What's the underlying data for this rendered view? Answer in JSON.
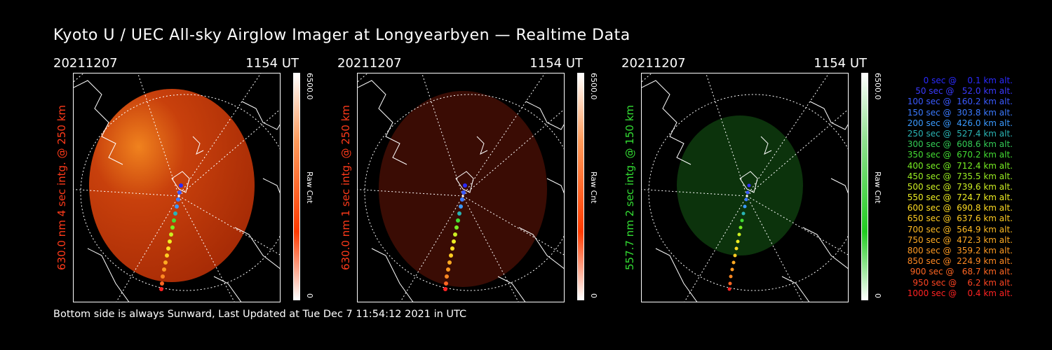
{
  "title": "Kyoto U / UEC All-sky Airglow Imager at Longyearbyen — Realtime Data",
  "footer": "Bottom side is always Sunward, Last Updated at Tue Dec  7 11:54:12 2021 in UTC",
  "panels": [
    {
      "date": "20211207",
      "time": "1154 UT",
      "ylabel": "630.0 nm 4 sec intg. @ 250 km",
      "label_color": "#ff3a1a",
      "cbar_max": "6500.0",
      "cbar_unit": "Raw Cnt",
      "cbar_min": "0",
      "cbar_color": "#ff3a00",
      "brightness": "high"
    },
    {
      "date": "20211207",
      "time": "1154 UT",
      "ylabel": "630.0 nm 1 sec intg. @ 250 km",
      "label_color": "#ff3a1a",
      "cbar_max": "6500.0",
      "cbar_unit": "Raw Cnt",
      "cbar_min": "0",
      "cbar_color": "#ff3a00",
      "brightness": "low"
    },
    {
      "date": "20211207",
      "time": "1154 UT",
      "ylabel": "557.7 nm 2 sec intg. @ 150 km",
      "label_color": "#33dd33",
      "cbar_max": "6500.0",
      "cbar_unit": "Raw Cnt",
      "cbar_min": "0",
      "cbar_color": "#22cc22",
      "brightness": "low"
    }
  ],
  "legend": [
    {
      "text": "   0 sec @    0.1 km alt.",
      "color": "#2a2aff"
    },
    {
      "text": "  50 sec @   52.0 km alt.",
      "color": "#3a3aff"
    },
    {
      "text": " 100 sec @  160.2 km alt.",
      "color": "#3a5aff"
    },
    {
      "text": " 150 sec @  303.8 km alt.",
      "color": "#3a7aff"
    },
    {
      "text": " 200 sec @  426.0 km alt.",
      "color": "#3a9aff"
    },
    {
      "text": " 250 sec @  527.4 km alt.",
      "color": "#2ab4b4"
    },
    {
      "text": " 300 sec @  608.6 km alt.",
      "color": "#33cc55"
    },
    {
      "text": " 350 sec @  670.2 km alt.",
      "color": "#44dd33"
    },
    {
      "text": " 400 sec @  712.4 km alt.",
      "color": "#77ee22"
    },
    {
      "text": " 450 sec @  735.5 km alt.",
      "color": "#99ee22"
    },
    {
      "text": " 500 sec @  739.6 km alt.",
      "color": "#ccee22"
    },
    {
      "text": " 550 sec @  724.7 km alt.",
      "color": "#eeee22"
    },
    {
      "text": " 600 sec @  690.8 km alt.",
      "color": "#ffdd22"
    },
    {
      "text": " 650 sec @  637.6 km alt.",
      "color": "#ffcc22"
    },
    {
      "text": " 700 sec @  564.9 km alt.",
      "color": "#ffbb22"
    },
    {
      "text": " 750 sec @  472.3 km alt.",
      "color": "#ffaa22"
    },
    {
      "text": " 800 sec @  359.2 km alt.",
      "color": "#ff9922"
    },
    {
      "text": " 850 sec @  224.9 km alt.",
      "color": "#ff8822"
    },
    {
      "text": " 900 sec @   68.7 km alt.",
      "color": "#ff6622"
    },
    {
      "text": " 950 sec @    6.2 km alt.",
      "color": "#ff4422"
    },
    {
      "text": "1000 sec @    0.4 km alt.",
      "color": "#ff2222"
    }
  ]
}
